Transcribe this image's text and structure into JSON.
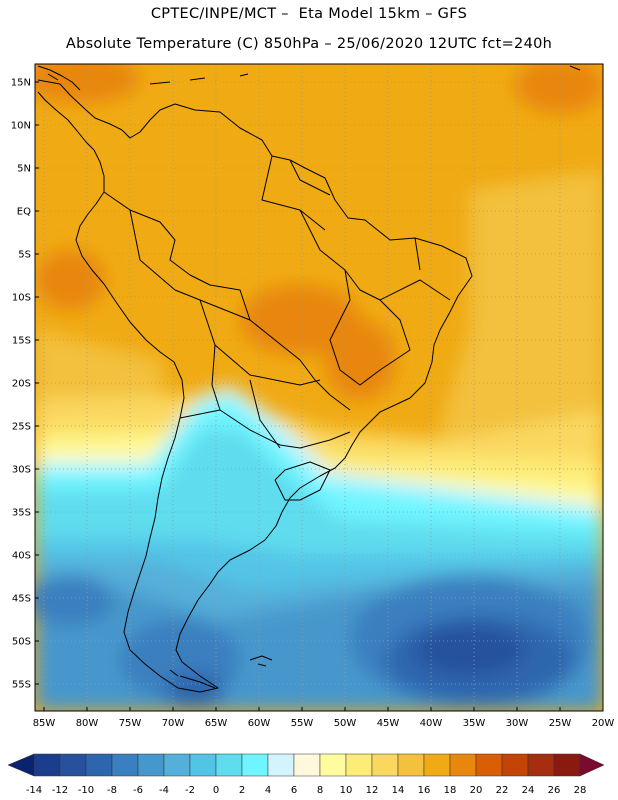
{
  "header": {
    "line1": "CPTEC/INPE/MCT –  Eta Model 15km – GFS",
    "line2": "Absolute Temperature (C) 850hPa – 25/06/2020 12UTC fct=240h"
  },
  "axes": {
    "latitude_labels": [
      "15N",
      "10N",
      "5N",
      "EQ",
      "5S",
      "10S",
      "15S",
      "20S",
      "25S",
      "30S",
      "35S",
      "40S",
      "45S",
      "50S",
      "55S"
    ],
    "longitude_labels": [
      "85W",
      "80W",
      "75W",
      "70W",
      "65W",
      "60W",
      "55W",
      "50W",
      "45W",
      "40W",
      "35W",
      "30W",
      "25W",
      "20W"
    ]
  },
  "colorbar": {
    "labels": [
      "-14",
      "-12",
      "-10",
      "-8",
      "-6",
      "-4",
      "-2",
      "0",
      "2",
      "4",
      "6",
      "8",
      "10",
      "12",
      "14",
      "16",
      "18",
      "20",
      "22",
      "24",
      "26",
      "28"
    ],
    "colors": [
      "#1b3e8c",
      "#27519c",
      "#2d66ad",
      "#3a7fbf",
      "#4697cc",
      "#54afd9",
      "#52c4e6",
      "#5fdcee",
      "#6ff5ff",
      "#d2f4ff",
      "#fff8dc",
      "#fffca0",
      "#fdec78",
      "#fad860",
      "#f3c13c",
      "#f0aa14",
      "#e8860e",
      "#da5e05",
      "#c44408",
      "#a52e10",
      "#8a1a10"
    ],
    "under_color": "#0b2270",
    "over_color": "#7a0a30"
  },
  "colors": {
    "warm_base": "#f0aa14",
    "cold_deep": "#27519c",
    "coast": "#000000"
  }
}
